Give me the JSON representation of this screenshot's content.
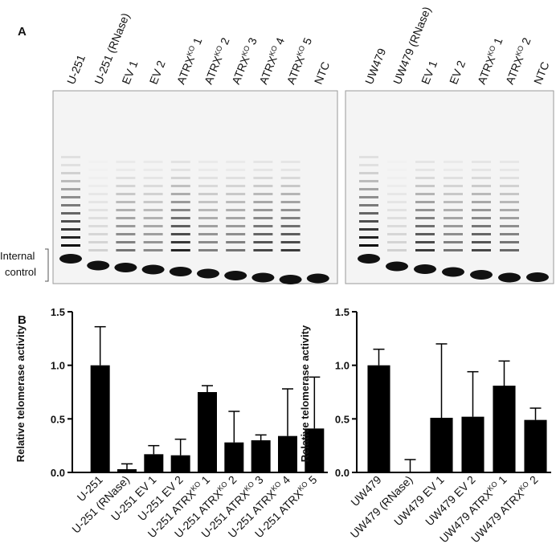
{
  "panel_labels": [
    "A",
    "B"
  ],
  "internal_control": [
    "Internal",
    "control"
  ],
  "gels": [
    {
      "lanes": [
        "U-251",
        "U-251 (RNase)",
        "EV 1",
        "EV 2",
        {
          "text": "ATRX",
          "sup": "KO",
          "after": " 1"
        },
        {
          "text": "ATRX",
          "sup": "KO",
          "after": " 2"
        },
        {
          "text": "ATRX",
          "sup": "KO",
          "after": " 3"
        },
        {
          "text": "ATRX",
          "sup": "KO",
          "after": " 4"
        },
        {
          "text": "ATRX",
          "sup": "KO",
          "after": " 5"
        },
        "NTC"
      ]
    },
    {
      "lanes": [
        "UW479",
        "UW479 (RNase)",
        "EV 1",
        "EV 2",
        {
          "text": "ATRX",
          "sup": "KO",
          "after": " 1"
        },
        {
          "text": "ATRX",
          "sup": "KO",
          "after": " 2"
        },
        "NTC"
      ]
    }
  ],
  "chart_data": [
    {
      "type": "bar",
      "y_label": "Relative telomerase activity",
      "color": "#000000",
      "categories": [
        "U-251",
        "U-251 (RNase)",
        "U-251 EV 1",
        "U-251 EV 2",
        {
          "text": "U-251 ATRX",
          "sup": "KO",
          "after": " 1"
        },
        {
          "text": "U-251 ATRX",
          "sup": "KO",
          "after": " 2"
        },
        {
          "text": "U-251 ATRX",
          "sup": "KO",
          "after": " 3"
        },
        {
          "text": "U-251 ATRX",
          "sup": "KO",
          "after": " 4"
        },
        {
          "text": "U-251 ATRX",
          "sup": "KO",
          "after": " 5"
        }
      ],
      "values": [
        1.0,
        0.03,
        0.17,
        0.16,
        0.75,
        0.28,
        0.3,
        0.34,
        0.41
      ],
      "errors": [
        0.36,
        0.05,
        0.08,
        0.15,
        0.06,
        0.29,
        0.05,
        0.44,
        0.48
      ],
      "ylim": [
        0,
        1.5
      ],
      "yticks": [
        {
          "value": 0,
          "label": "0.0"
        },
        0.5,
        {
          "value": 1,
          "label": "1.0"
        },
        1.5
      ]
    },
    {
      "type": "bar",
      "y_label": "Relative telomerase activity",
      "color": "#000000",
      "categories": [
        "UW479",
        "UW479 (RNase)",
        "UW479 EV 1",
        "UW479 EV 2",
        {
          "text": "UW479 ATRX",
          "sup": "KO",
          "after": " 1"
        },
        {
          "text": "UW479 ATRX",
          "sup": "KO",
          "after": " 2"
        }
      ],
      "values": [
        1.0,
        0.0,
        0.51,
        0.52,
        0.81,
        0.49
      ],
      "errors": [
        0.15,
        0.12,
        0.69,
        0.42,
        0.23,
        0.11
      ],
      "ylim": [
        0,
        1.5
      ],
      "yticks": [
        {
          "value": 0,
          "label": "0.0"
        },
        0.5,
        {
          "value": 1,
          "label": "1.0"
        },
        1.5
      ]
    }
  ]
}
